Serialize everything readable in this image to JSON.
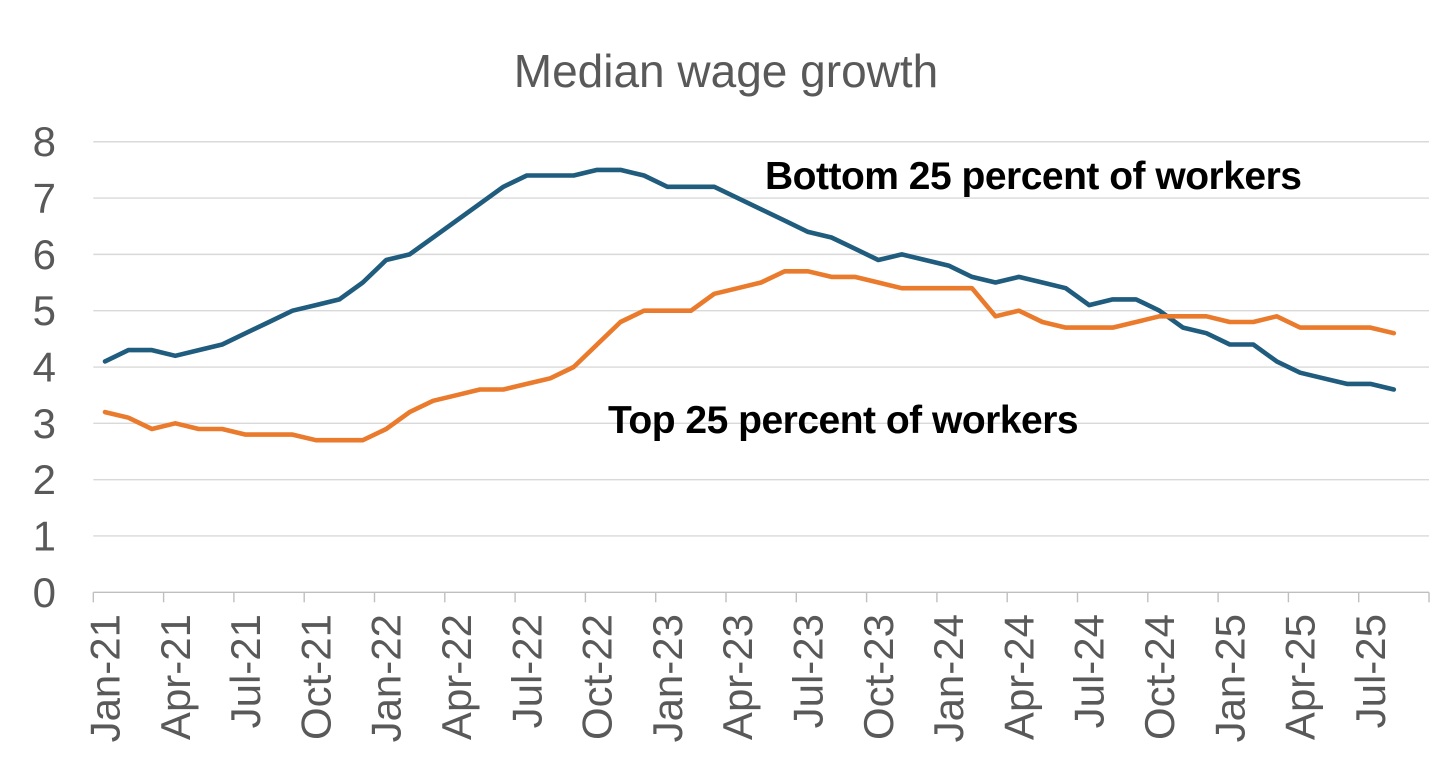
{
  "chart": {
    "title": "Median wage growth",
    "series_labels": {
      "bottom": "Bottom 25 percent of workers",
      "top": "Top 25 percent of workers"
    }
  },
  "chart_data": {
    "type": "line",
    "title": "Median wage growth",
    "categories": [
      "Jan-21",
      "Feb-21",
      "Mar-21",
      "Apr-21",
      "May-21",
      "Jun-21",
      "Jul-21",
      "Aug-21",
      "Sep-21",
      "Oct-21",
      "Nov-21",
      "Dec-21",
      "Jan-22",
      "Feb-22",
      "Mar-22",
      "Apr-22",
      "May-22",
      "Jun-22",
      "Jul-22",
      "Aug-22",
      "Sep-22",
      "Oct-22",
      "Nov-22",
      "Dec-22",
      "Jan-23",
      "Feb-23",
      "Mar-23",
      "Apr-23",
      "May-23",
      "Jun-23",
      "Jul-23",
      "Aug-23",
      "Sep-23",
      "Oct-23",
      "Nov-23",
      "Dec-23",
      "Jan-24",
      "Feb-24",
      "Mar-24",
      "Apr-24",
      "May-24",
      "Jun-24",
      "Jul-24",
      "Aug-24",
      "Sep-24",
      "Oct-24",
      "Nov-24",
      "Dec-24",
      "Jan-25",
      "Feb-25",
      "Mar-25",
      "Apr-25",
      "May-25",
      "Jun-25",
      "Jul-25",
      "Aug-25"
    ],
    "x_tick_labels": [
      "Jan-21",
      "Apr-21",
      "Jul-21",
      "Oct-21",
      "Jan-22",
      "Apr-22",
      "Jul-22",
      "Oct-22",
      "Jan-23",
      "Apr-23",
      "Jul-23",
      "Oct-23",
      "Jan-24",
      "Apr-24",
      "Jul-24",
      "Oct-24",
      "Jan-25",
      "Apr-25",
      "Jul-25"
    ],
    "series": [
      {
        "name": "Bottom 25 percent of workers",
        "color": "#1F5C7E",
        "values": [
          4.1,
          4.3,
          4.3,
          4.2,
          4.3,
          4.4,
          4.6,
          4.8,
          5.0,
          5.1,
          5.2,
          5.5,
          5.9,
          6.0,
          6.3,
          6.6,
          6.9,
          7.2,
          7.4,
          7.4,
          7.4,
          7.5,
          7.5,
          7.4,
          7.2,
          7.2,
          7.2,
          7.0,
          6.8,
          6.6,
          6.4,
          6.3,
          6.1,
          5.9,
          6.0,
          5.9,
          5.8,
          5.6,
          5.5,
          5.6,
          5.5,
          5.4,
          5.1,
          5.2,
          5.2,
          5.0,
          4.7,
          4.6,
          4.4,
          4.4,
          4.1,
          3.9,
          3.8,
          3.7,
          3.7,
          3.6
        ]
      },
      {
        "name": "Top 25 percent of workers",
        "color": "#EA7A2C",
        "values": [
          3.2,
          3.1,
          2.9,
          3.0,
          2.9,
          2.9,
          2.8,
          2.8,
          2.8,
          2.7,
          2.7,
          2.7,
          2.9,
          3.2,
          3.4,
          3.5,
          3.6,
          3.6,
          3.7,
          3.8,
          4.0,
          4.4,
          4.8,
          5.0,
          5.0,
          5.0,
          5.3,
          5.4,
          5.5,
          5.7,
          5.7,
          5.6,
          5.6,
          5.5,
          5.4,
          5.4,
          5.4,
          5.4,
          4.9,
          5.0,
          4.8,
          4.7,
          4.7,
          4.7,
          4.8,
          4.9,
          4.9,
          4.9,
          4.8,
          4.8,
          4.9,
          4.7,
          4.7,
          4.7,
          4.7,
          4.6
        ]
      }
    ],
    "ylim": [
      0,
      8
    ],
    "y_ticks": [
      0,
      1,
      2,
      3,
      4,
      5,
      6,
      7,
      8
    ],
    "grid": true,
    "legend_position": "none",
    "xlabel": "",
    "ylabel": "",
    "colors": {
      "grid": "#D9D9D9",
      "axis": "#BFBFBF",
      "tick_label": "#595959",
      "title": "#595959",
      "annotation": "#000000",
      "background": "#FFFFFF"
    }
  }
}
